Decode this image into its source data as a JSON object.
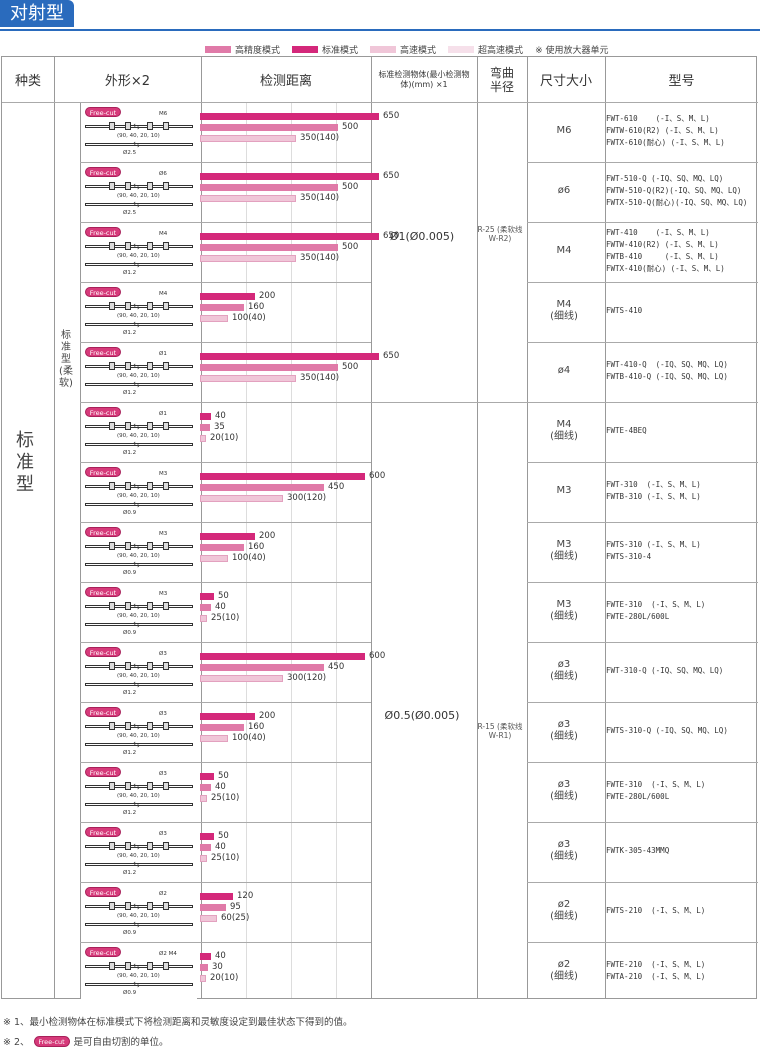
{
  "section_title": "对射型",
  "legend": {
    "items": [
      {
        "label": "高精度模式",
        "color": "#e07aa8"
      },
      {
        "label": "标准模式",
        "color": "#d4287a"
      },
      {
        "label": "高速模式",
        "color": "#f0c6d8"
      },
      {
        "label": "超高速模式",
        "color": "#f6e0ea"
      }
    ],
    "note": "※ 使用放大器单元"
  },
  "headers": {
    "kind": "种类",
    "shape": "外形×2",
    "distance": "检测距离",
    "min_object": "标准检测物体(最小检测物体)(mm) ×1",
    "bend": "弯曲半径",
    "size": "尺寸大小",
    "model": "型号"
  },
  "category": {
    "main": "标准型",
    "sub": "标准型(柔软)"
  },
  "free_cut_label": "Free-cut",
  "dim_label": "(90, 40, 20, 10)",
  "min_objects": {
    "upper": "Ø1(Ø0.005)",
    "lower": "Ø0.5(Ø0.005)"
  },
  "bend_radius": {
    "upper": "R-25 (柔软线 W-R2)",
    "lower": "R-15 (柔软线 W-R1)"
  },
  "chart_data": {
    "type": "bar",
    "title": "",
    "xlabel": "检测距离",
    "ylabel": "",
    "xlim": [
      0,
      800
    ],
    "series_names": [
      "标准模式",
      "高精度模式",
      "高速模式"
    ],
    "rows": [
      {
        "size": "M6",
        "thread": "M6",
        "dia": "Ø2.5",
        "values": [
          650,
          500,
          350
        ],
        "labels": [
          "650",
          "500",
          "350(140)"
        ],
        "models": [
          "FWT-610    (-I、S、M、L)",
          "FWTW-610(R2) (-I、S、M、L)",
          "FWTX-610(耐心) (-I、S、M、L)"
        ]
      },
      {
        "size": "ø6",
        "thread": "Ø6",
        "dia": "Ø2.5",
        "values": [
          650,
          500,
          350
        ],
        "labels": [
          "650",
          "500",
          "350(140)"
        ],
        "models": [
          "FWT-510-Q (-IQ、SQ、MQ、LQ)",
          "FWTW-510-Q(R2)(-IQ、SQ、MQ、LQ)",
          "FWTX-510-Q(耐心)(-IQ、SQ、MQ、LQ)"
        ]
      },
      {
        "size": "M4",
        "thread": "M4",
        "dia": "Ø1.2",
        "values": [
          650,
          500,
          350
        ],
        "labels": [
          "650",
          "500",
          "350(140)"
        ],
        "models": [
          "FWT-410    (-I、S、M、L)",
          "FWTW-410(R2) (-I、S、M、L)",
          "FWTB-410     (-I、S、M、L)",
          "FWTX-410(耐心) (-I、S、M、L)"
        ]
      },
      {
        "size": "M4 (细线)",
        "thread": "M4",
        "dia": "Ø1.2",
        "values": [
          200,
          160,
          100
        ],
        "labels": [
          "200",
          "160",
          "100(40)"
        ],
        "models": [
          "FWTS-410"
        ]
      },
      {
        "size": "ø4",
        "thread": "Ø1",
        "dia": "Ø1.2",
        "values": [
          650,
          500,
          350
        ],
        "labels": [
          "650",
          "500",
          "350(140)"
        ],
        "models": [
          "FWT-410-Q  (-IQ、SQ、MQ、LQ)",
          "FWTB-410-Q (-IQ、SQ、MQ、LQ)"
        ]
      },
      {
        "size": "M4 (细线)",
        "thread": "Ø1",
        "dia": "Ø1.2",
        "values": [
          40,
          35,
          20
        ],
        "labels": [
          "40",
          "35",
          "20(10)"
        ],
        "models": [
          "FWTE-4BEQ"
        ]
      },
      {
        "size": "M3",
        "thread": "M3",
        "dia": "Ø0.9",
        "values": [
          600,
          450,
          300
        ],
        "labels": [
          "600",
          "450",
          "300(120)"
        ],
        "models": [
          "FWT-310  (-I、S、M、L)",
          "FWTB-310 (-I、S、M、L)"
        ]
      },
      {
        "size": "M3 (细线)",
        "thread": "M3",
        "dia": "Ø0.9",
        "values": [
          200,
          160,
          100
        ],
        "labels": [
          "200",
          "160",
          "100(40)"
        ],
        "models": [
          "FWTS-310 (-I、S、M、L)",
          "FWTS-310-4"
        ]
      },
      {
        "size": "M3 (细线)",
        "thread": "M3",
        "dia": "Ø0.9",
        "values": [
          50,
          40,
          25
        ],
        "labels": [
          "50",
          "40",
          "25(10)"
        ],
        "models": [
          "FWTE-310  (-I、S、M、L)",
          "FWTE-280L/600L"
        ]
      },
      {
        "size": "ø3 (细线)",
        "thread": "Ø3",
        "dia": "Ø1.2",
        "values": [
          600,
          450,
          300
        ],
        "labels": [
          "600",
          "450",
          "300(120)"
        ],
        "models": [
          "FWT-310-Q (-IQ、SQ、MQ、LQ)"
        ]
      },
      {
        "size": "ø3 (细线)",
        "thread": "Ø3",
        "dia": "Ø1.2",
        "values": [
          200,
          160,
          100
        ],
        "labels": [
          "200",
          "160",
          "100(40)"
        ],
        "models": [
          "FWTS-310-Q (-IQ、SQ、MQ、LQ)"
        ]
      },
      {
        "size": "ø3 (细线)",
        "thread": "Ø3",
        "dia": "Ø1.2",
        "values": [
          50,
          40,
          25
        ],
        "labels": [
          "50",
          "40",
          "25(10)"
        ],
        "models": [
          "FWTE-310  (-I、S、M、L)",
          "FWTE-280L/600L"
        ]
      },
      {
        "size": "ø3 (细线)",
        "thread": "Ø3",
        "dia": "Ø1.2",
        "values": [
          50,
          40,
          25
        ],
        "labels": [
          "50",
          "40",
          "25(10)"
        ],
        "models": [
          "FWTK-305-43MMQ"
        ]
      },
      {
        "size": "ø2 (细线)",
        "thread": "Ø2",
        "dia": "Ø0.9",
        "values": [
          120,
          95,
          60
        ],
        "labels": [
          "120",
          "95",
          "60(25)"
        ],
        "models": [
          "FWTS-210  (-I、S、M、L)"
        ]
      },
      {
        "size": "ø2 (细线)",
        "thread": "Ø2 M4",
        "dia": "Ø0.9",
        "values": [
          40,
          30,
          20
        ],
        "labels": [
          "40",
          "30",
          "20(10)"
        ],
        "models": [
          "FWTE-210  (-I、S、M、L)",
          "FWTA-210  (-I、S、M、L)"
        ]
      }
    ]
  },
  "footnotes": {
    "n1": "※ 1、最小检测物体在标准模式下将检测距离和灵敏度设定到最佳状态下得到的值。",
    "n2_prefix": "※ 2、",
    "n2_suffix": "是可自由切割的单位。"
  }
}
